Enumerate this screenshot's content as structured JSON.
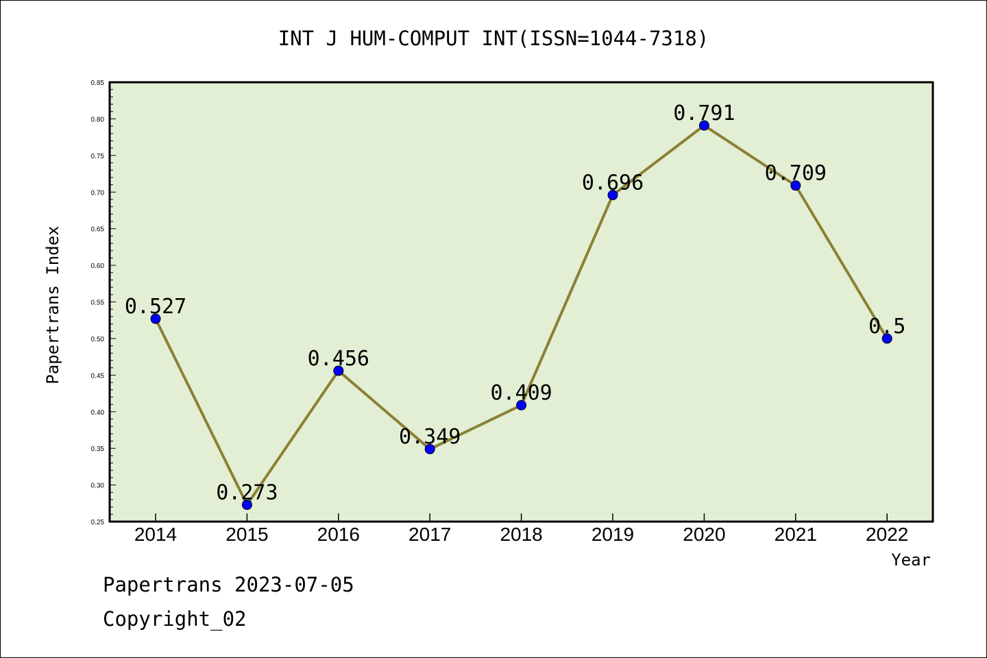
{
  "chart_data": {
    "type": "line",
    "title": "INT J HUM-COMPUT INT(ISSN=1044-7318)",
    "xlabel": "Year",
    "ylabel": "Papertrans Index",
    "categories": [
      "2014",
      "2015",
      "2016",
      "2017",
      "2018",
      "2019",
      "2020",
      "2021",
      "2022"
    ],
    "values": [
      0.527,
      0.273,
      0.456,
      0.349,
      0.409,
      0.696,
      0.791,
      0.709,
      0.5
    ],
    "data_labels": [
      "0.527",
      "0.273",
      "0.456",
      "0.349",
      "0.409",
      "0.696",
      "0.791",
      "0.709",
      "0.5"
    ],
    "ylim": [
      0.25,
      0.85
    ],
    "yticks": [
      "0.25",
      "0.30",
      "0.35",
      "0.40",
      "0.45",
      "0.50",
      "0.55",
      "0.60",
      "0.65",
      "0.70",
      "0.75",
      "0.80",
      "0.85"
    ],
    "grid": false,
    "colors": {
      "plot_background": "#e2efd5",
      "line": "#8b8035",
      "marker": "#0000ff"
    }
  },
  "footer": {
    "line1": "Papertrans 2023-07-05",
    "line2": "Copyright_02"
  }
}
